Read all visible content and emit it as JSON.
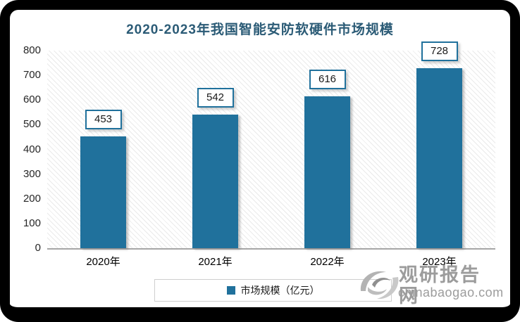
{
  "chart_data": {
    "type": "bar",
    "title": "2020-2023年我国智能安防软硬件市场规模",
    "categories": [
      "2020年",
      "2021年",
      "2022年",
      "2023年"
    ],
    "series": [
      {
        "name": "市场规模（亿元）",
        "values": [
          453,
          542,
          616,
          728
        ]
      }
    ],
    "xlabel": "",
    "ylabel": "",
    "ylim": [
      0,
      800
    ],
    "yticks": [
      0,
      100,
      200,
      300,
      400,
      500,
      600,
      700,
      800
    ],
    "grid": false,
    "legend_position": "bottom",
    "bar_color": "#20719C",
    "plot_background": "diagonal-hatch"
  },
  "legend": {
    "label": "市场规模（亿元）"
  },
  "watermark": {
    "site_name": "观研报告网",
    "site_domain": "chinabaogao.com"
  },
  "colors": {
    "bar": "#20719C",
    "title_text": "#2B5B76",
    "value_box_border": "#20719C",
    "axis_line": "#A6A6A6",
    "watermark_text": "#9C9C9C",
    "frame": "#000000"
  }
}
